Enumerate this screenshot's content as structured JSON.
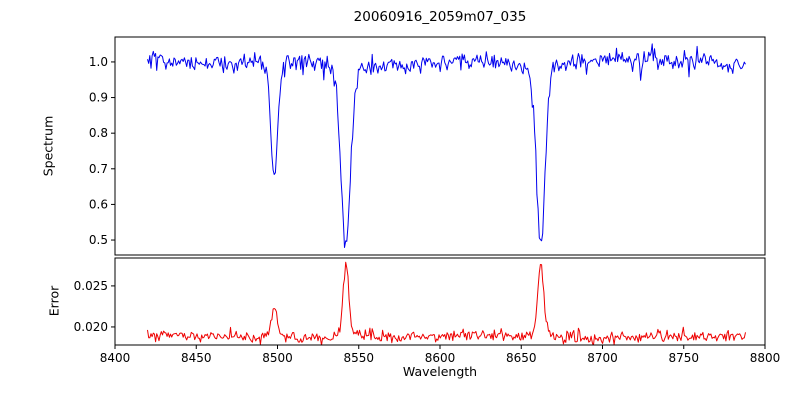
{
  "figure": {
    "title": "20060916_2059m07_035",
    "background_color": "#ffffff"
  },
  "axes": {
    "xlabel": "Wavelength",
    "xlim": [
      8400,
      8800
    ],
    "xtick_values": [
      8400,
      8450,
      8500,
      8550,
      8600,
      8650,
      8700,
      8750,
      8800
    ],
    "xtick_labels": [
      "8400",
      "8450",
      "8500",
      "8550",
      "8600",
      "8650",
      "8700",
      "8750",
      "8800"
    ]
  },
  "chart_data": [
    {
      "type": "line",
      "name": "spectrum",
      "ylabel": "Spectrum",
      "legend": "none",
      "grid": false,
      "color": "#0000ee",
      "xlim": [
        8400,
        8800
      ],
      "ylim": [
        0.458,
        1.07
      ],
      "ytick_values": [
        0.5,
        0.6,
        0.7,
        0.8,
        0.9,
        1.0
      ],
      "ytick_labels": [
        "0.5",
        "0.6",
        "0.7",
        "0.8",
        "0.9",
        "1.0"
      ],
      "x_range": [
        8420,
        8788
      ],
      "continuum_level": 1.0,
      "noise_sigma": 0.013,
      "absorption_lines": [
        {
          "center": 8498,
          "depth": 0.31,
          "sigma": 2.0,
          "min_value": 0.67
        },
        {
          "center": 8542,
          "depth": 0.49,
          "sigma": 2.8,
          "min_value": 0.49
        },
        {
          "center": 8662,
          "depth": 0.48,
          "sigma": 2.6,
          "min_value": 0.5
        }
      ]
    },
    {
      "type": "line",
      "name": "error",
      "ylabel": "Error",
      "legend": "none",
      "grid": false,
      "color": "#ee0000",
      "xlim": [
        8400,
        8800
      ],
      "ylim": [
        0.0178,
        0.0284
      ],
      "ytick_values": [
        0.02,
        0.025
      ],
      "ytick_labels": [
        "0.020",
        "0.025"
      ],
      "x_range": [
        8420,
        8788
      ],
      "baseline_level": 0.0188,
      "noise_sigma": 0.00035,
      "emission_peaks": [
        {
          "center": 8498,
          "amplitude": 0.0037,
          "sigma": 1.6,
          "peak_value": 0.0225
        },
        {
          "center": 8542,
          "amplitude": 0.0086,
          "sigma": 1.7,
          "peak_value": 0.0274
        },
        {
          "center": 8662,
          "amplitude": 0.0087,
          "sigma": 1.7,
          "peak_value": 0.0275
        }
      ]
    }
  ]
}
